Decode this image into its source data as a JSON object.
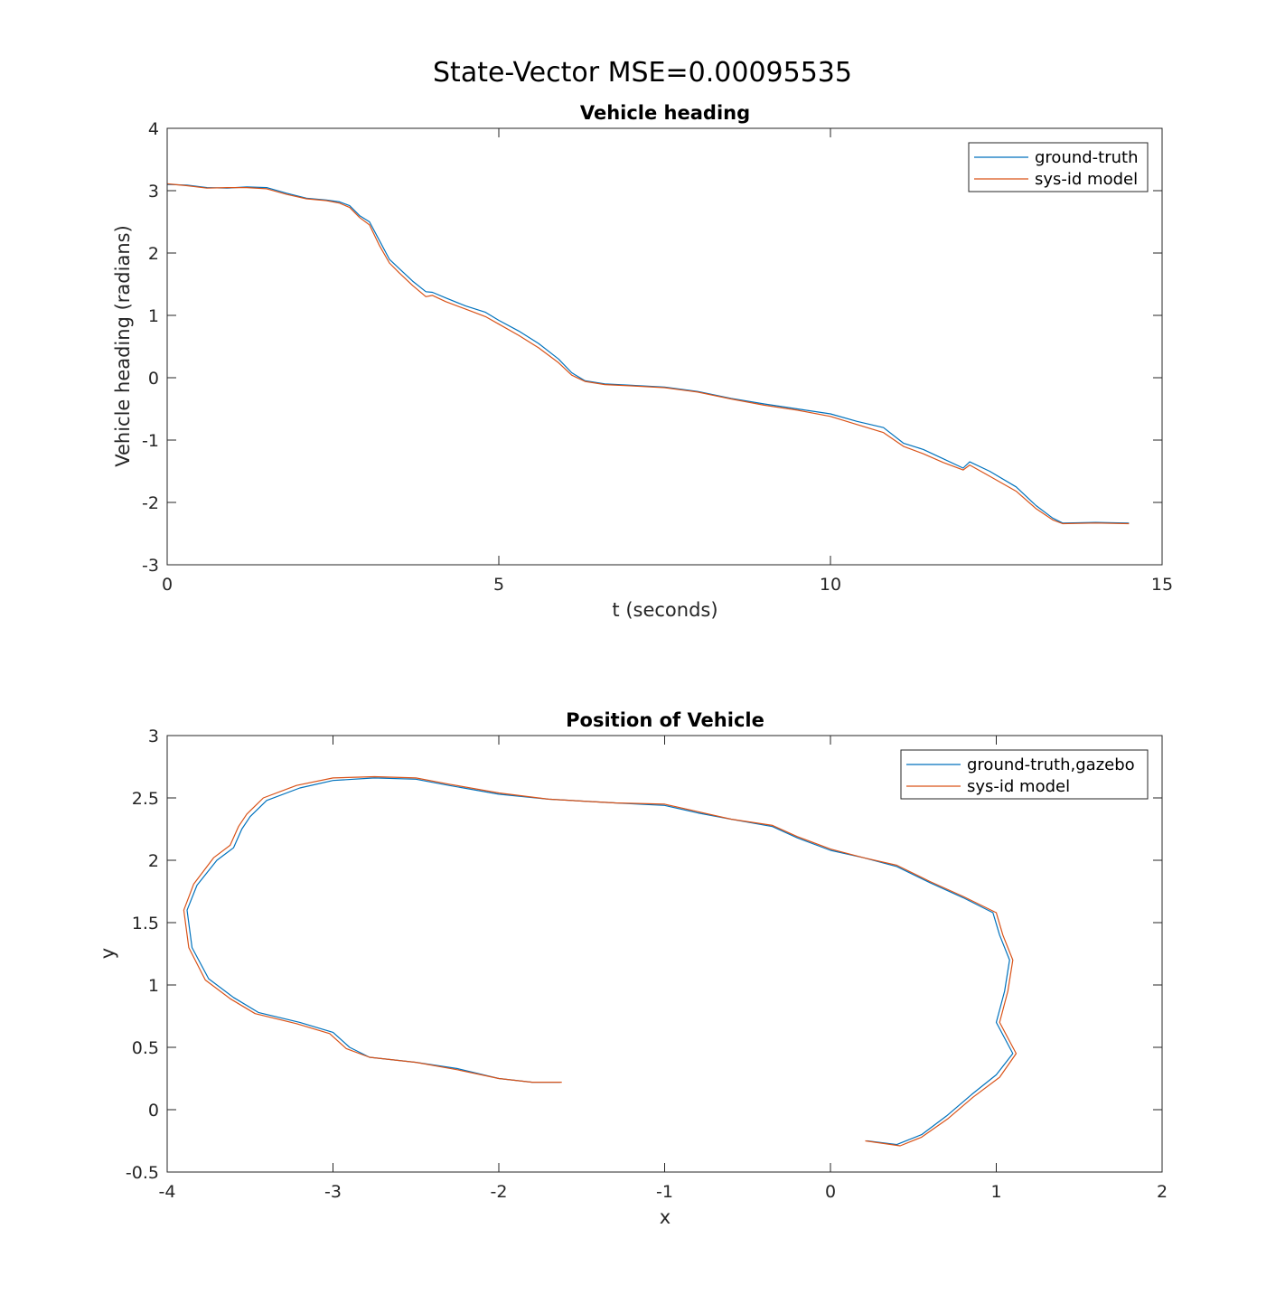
{
  "figure": {
    "suptitle": "State-Vector MSE=0.00095535",
    "colors": {
      "series1": "#0072BD",
      "series2": "#D95319",
      "axes": "#262626",
      "legend_border": "#262626"
    }
  },
  "chart_data": [
    {
      "type": "line",
      "title": "Vehicle heading",
      "xlabel": "t (seconds)",
      "ylabel": "Vehicle heading (radians)",
      "xlim": [
        0,
        15
      ],
      "ylim": [
        -3,
        4
      ],
      "xticks": [
        0,
        5,
        10,
        15
      ],
      "xtick_labels": [
        "0",
        "5",
        "10",
        "15"
      ],
      "yticks": [
        -3,
        -2,
        -1,
        0,
        1,
        2,
        3,
        4
      ],
      "ytick_labels": [
        "-3",
        "-2",
        "-1",
        "0",
        "1",
        "2",
        "3",
        "4"
      ],
      "grid": false,
      "legend_position": "top-right",
      "series": [
        {
          "name": "ground-truth",
          "color": "#0072BD",
          "points": [
            [
              0,
              3.1
            ],
            [
              0.3,
              3.09
            ],
            [
              0.6,
              3.05
            ],
            [
              0.9,
              3.04
            ],
            [
              1.2,
              3.06
            ],
            [
              1.5,
              3.05
            ],
            [
              1.8,
              2.96
            ],
            [
              2.1,
              2.88
            ],
            [
              2.4,
              2.85
            ],
            [
              2.6,
              2.82
            ],
            [
              2.75,
              2.76
            ],
            [
              2.9,
              2.6
            ],
            [
              3.05,
              2.5
            ],
            [
              3.2,
              2.2
            ],
            [
              3.35,
              1.9
            ],
            [
              3.5,
              1.75
            ],
            [
              3.7,
              1.55
            ],
            [
              3.9,
              1.38
            ],
            [
              4.0,
              1.37
            ],
            [
              4.2,
              1.28
            ],
            [
              4.5,
              1.15
            ],
            [
              4.8,
              1.05
            ],
            [
              5.0,
              0.92
            ],
            [
              5.3,
              0.75
            ],
            [
              5.6,
              0.55
            ],
            [
              5.9,
              0.3
            ],
            [
              6.1,
              0.08
            ],
            [
              6.3,
              -0.05
            ],
            [
              6.6,
              -0.1
            ],
            [
              7.0,
              -0.12
            ],
            [
              7.5,
              -0.15
            ],
            [
              8.0,
              -0.22
            ],
            [
              8.5,
              -0.33
            ],
            [
              9.0,
              -0.42
            ],
            [
              9.5,
              -0.5
            ],
            [
              10.0,
              -0.58
            ],
            [
              10.4,
              -0.7
            ],
            [
              10.8,
              -0.8
            ],
            [
              11.1,
              -1.05
            ],
            [
              11.4,
              -1.15
            ],
            [
              11.7,
              -1.3
            ],
            [
              12.0,
              -1.45
            ],
            [
              12.1,
              -1.35
            ],
            [
              12.4,
              -1.5
            ],
            [
              12.8,
              -1.75
            ],
            [
              13.1,
              -2.05
            ],
            [
              13.35,
              -2.25
            ],
            [
              13.5,
              -2.33
            ],
            [
              14.0,
              -2.32
            ],
            [
              14.5,
              -2.33
            ]
          ]
        },
        {
          "name": "sys-id model",
          "color": "#D95319",
          "points": [
            [
              0,
              3.11
            ],
            [
              0.3,
              3.08
            ],
            [
              0.6,
              3.04
            ],
            [
              0.9,
              3.05
            ],
            [
              1.2,
              3.05
            ],
            [
              1.5,
              3.03
            ],
            [
              1.8,
              2.94
            ],
            [
              2.1,
              2.87
            ],
            [
              2.4,
              2.84
            ],
            [
              2.6,
              2.8
            ],
            [
              2.75,
              2.73
            ],
            [
              2.9,
              2.57
            ],
            [
              3.05,
              2.45
            ],
            [
              3.2,
              2.12
            ],
            [
              3.35,
              1.84
            ],
            [
              3.5,
              1.68
            ],
            [
              3.7,
              1.48
            ],
            [
              3.9,
              1.3
            ],
            [
              4.0,
              1.32
            ],
            [
              4.2,
              1.22
            ],
            [
              4.5,
              1.1
            ],
            [
              4.8,
              0.98
            ],
            [
              5.0,
              0.86
            ],
            [
              5.3,
              0.68
            ],
            [
              5.6,
              0.48
            ],
            [
              5.9,
              0.24
            ],
            [
              6.1,
              0.04
            ],
            [
              6.3,
              -0.06
            ],
            [
              6.6,
              -0.11
            ],
            [
              7.0,
              -0.13
            ],
            [
              7.5,
              -0.16
            ],
            [
              8.0,
              -0.23
            ],
            [
              8.5,
              -0.34
            ],
            [
              9.0,
              -0.44
            ],
            [
              9.5,
              -0.52
            ],
            [
              10.0,
              -0.62
            ],
            [
              10.4,
              -0.75
            ],
            [
              10.8,
              -0.88
            ],
            [
              11.1,
              -1.1
            ],
            [
              11.4,
              -1.22
            ],
            [
              11.7,
              -1.36
            ],
            [
              12.0,
              -1.48
            ],
            [
              12.1,
              -1.4
            ],
            [
              12.4,
              -1.58
            ],
            [
              12.8,
              -1.82
            ],
            [
              13.1,
              -2.1
            ],
            [
              13.35,
              -2.28
            ],
            [
              13.5,
              -2.34
            ],
            [
              14.0,
              -2.33
            ],
            [
              14.5,
              -2.34
            ]
          ]
        }
      ]
    },
    {
      "type": "line",
      "title": "Position of Vehicle",
      "xlabel": "x",
      "ylabel": "y",
      "xlim": [
        -4,
        2
      ],
      "ylim": [
        -0.5,
        3
      ],
      "xticks": [
        -4,
        -3,
        -2,
        -1,
        0,
        1,
        2
      ],
      "xtick_labels": [
        "-4",
        "-3",
        "-2",
        "-1",
        "0",
        "1",
        "2"
      ],
      "yticks": [
        -0.5,
        0,
        0.5,
        1,
        1.5,
        2,
        2.5,
        3
      ],
      "ytick_labels": [
        "-0.5",
        "0",
        "0.5",
        "1",
        "1.5",
        "2",
        "2.5",
        "3"
      ],
      "grid": false,
      "legend_position": "top-right",
      "series": [
        {
          "name": "ground-truth,gazebo",
          "color": "#0072BD",
          "points": [
            [
              -1.63,
              0.22
            ],
            [
              -1.8,
              0.22
            ],
            [
              -2.0,
              0.25
            ],
            [
              -2.25,
              0.33
            ],
            [
              -2.5,
              0.38
            ],
            [
              -2.78,
              0.42
            ],
            [
              -2.9,
              0.5
            ],
            [
              -3.0,
              0.62
            ],
            [
              -3.2,
              0.7
            ],
            [
              -3.45,
              0.78
            ],
            [
              -3.6,
              0.9
            ],
            [
              -3.75,
              1.05
            ],
            [
              -3.85,
              1.3
            ],
            [
              -3.88,
              1.6
            ],
            [
              -3.82,
              1.8
            ],
            [
              -3.7,
              2.0
            ],
            [
              -3.6,
              2.1
            ],
            [
              -3.55,
              2.25
            ],
            [
              -3.5,
              2.35
            ],
            [
              -3.4,
              2.48
            ],
            [
              -3.2,
              2.58
            ],
            [
              -3.0,
              2.64
            ],
            [
              -2.75,
              2.66
            ],
            [
              -2.5,
              2.65
            ],
            [
              -2.3,
              2.6
            ],
            [
              -2.0,
              2.53
            ],
            [
              -1.7,
              2.49
            ],
            [
              -1.3,
              2.46
            ],
            [
              -1.0,
              2.44
            ],
            [
              -0.8,
              2.38
            ],
            [
              -0.6,
              2.33
            ],
            [
              -0.35,
              2.27
            ],
            [
              -0.2,
              2.18
            ],
            [
              0.0,
              2.08
            ],
            [
              0.2,
              2.02
            ],
            [
              0.4,
              1.95
            ],
            [
              0.6,
              1.82
            ],
            [
              0.8,
              1.7
            ],
            [
              0.98,
              1.58
            ],
            [
              1.02,
              1.4
            ],
            [
              1.08,
              1.2
            ],
            [
              1.05,
              0.95
            ],
            [
              1.0,
              0.7
            ],
            [
              1.06,
              0.55
            ],
            [
              1.1,
              0.45
            ],
            [
              1.0,
              0.28
            ],
            [
              0.85,
              0.12
            ],
            [
              0.7,
              -0.05
            ],
            [
              0.55,
              -0.2
            ],
            [
              0.4,
              -0.28
            ],
            [
              0.22,
              -0.25
            ]
          ]
        },
        {
          "name": "sys-id model",
          "color": "#D95319",
          "points": [
            [
              -1.62,
              0.22
            ],
            [
              -1.8,
              0.22
            ],
            [
              -2.0,
              0.25
            ],
            [
              -2.25,
              0.32
            ],
            [
              -2.5,
              0.38
            ],
            [
              -2.78,
              0.42
            ],
            [
              -2.92,
              0.49
            ],
            [
              -3.02,
              0.61
            ],
            [
              -3.22,
              0.69
            ],
            [
              -3.47,
              0.77
            ],
            [
              -3.62,
              0.89
            ],
            [
              -3.77,
              1.04
            ],
            [
              -3.87,
              1.3
            ],
            [
              -3.9,
              1.6
            ],
            [
              -3.84,
              1.81
            ],
            [
              -3.72,
              2.02
            ],
            [
              -3.62,
              2.12
            ],
            [
              -3.57,
              2.27
            ],
            [
              -3.52,
              2.37
            ],
            [
              -3.42,
              2.5
            ],
            [
              -3.22,
              2.6
            ],
            [
              -3.0,
              2.66
            ],
            [
              -2.75,
              2.67
            ],
            [
              -2.5,
              2.66
            ],
            [
              -2.3,
              2.61
            ],
            [
              -2.0,
              2.54
            ],
            [
              -1.7,
              2.49
            ],
            [
              -1.3,
              2.46
            ],
            [
              -1.0,
              2.45
            ],
            [
              -0.8,
              2.39
            ],
            [
              -0.6,
              2.33
            ],
            [
              -0.35,
              2.28
            ],
            [
              -0.2,
              2.19
            ],
            [
              0.0,
              2.09
            ],
            [
              0.2,
              2.02
            ],
            [
              0.4,
              1.96
            ],
            [
              0.6,
              1.83
            ],
            [
              0.8,
              1.71
            ],
            [
              1.0,
              1.58
            ],
            [
              1.04,
              1.4
            ],
            [
              1.1,
              1.2
            ],
            [
              1.07,
              0.95
            ],
            [
              1.02,
              0.7
            ],
            [
              1.08,
              0.55
            ],
            [
              1.12,
              0.45
            ],
            [
              1.02,
              0.26
            ],
            [
              0.86,
              0.1
            ],
            [
              0.71,
              -0.07
            ],
            [
              0.55,
              -0.22
            ],
            [
              0.42,
              -0.29
            ],
            [
              0.21,
              -0.25
            ]
          ]
        }
      ]
    }
  ]
}
